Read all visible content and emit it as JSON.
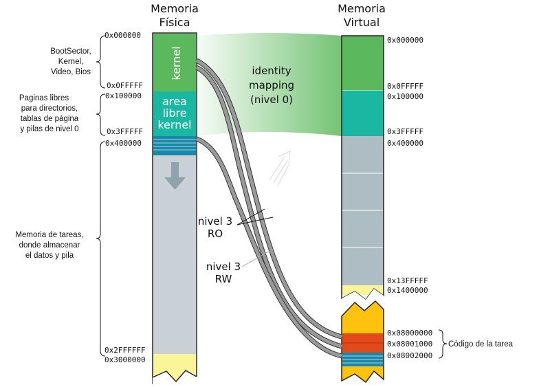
{
  "titles": {
    "physical": [
      "Memoria",
      "Física"
    ],
    "virtual": [
      "Memoria",
      "Virtual"
    ]
  },
  "physical_addresses": [
    "0x000000",
    "0x0FFFFF",
    "0x100000",
    "0x3FFFFF",
    "0x400000",
    "0x2FFFFFF",
    "0x3000000"
  ],
  "virtual_addresses": [
    "0x000000",
    "0x0FFFFF",
    "0x100000",
    "0x3FFFFF",
    "0x400000",
    "0x13FFFFF",
    "0x1400000",
    "0x08000000",
    "0x08001000",
    "0x08002000"
  ],
  "blocks": {
    "kernel": "kernel",
    "free_area": [
      "area",
      "libre",
      "kernel"
    ]
  },
  "annotations": {
    "bootsector": [
      "BootSector,",
      "Kernel,",
      "Video, Bios"
    ],
    "free_pages": [
      "Paginas libres",
      "para directorios,",
      "tablas de página",
      "y pilas de nivel 0"
    ],
    "task_memory": [
      "Memoria de tareas,",
      "donde almacenar",
      "el datos y pila"
    ],
    "task_code": "Código de la tarea"
  },
  "mapping": {
    "identity": [
      "identity",
      "mapping",
      "(nivel 0)"
    ],
    "ro": [
      "nivel 3",
      "RO"
    ],
    "rw": [
      "nivel 3",
      "RW"
    ]
  },
  "colors": {
    "kernel_green": "#5cb85c",
    "free_teal": "#1ab8a3",
    "task_gray": "#c9d1d6",
    "virtual_gray": "#aebcc3",
    "tail_yellow": "#fbf59a",
    "code_yellow": "#ffc20e",
    "code_red": "#e2491b",
    "stripe_blue": "#1c86a8"
  }
}
